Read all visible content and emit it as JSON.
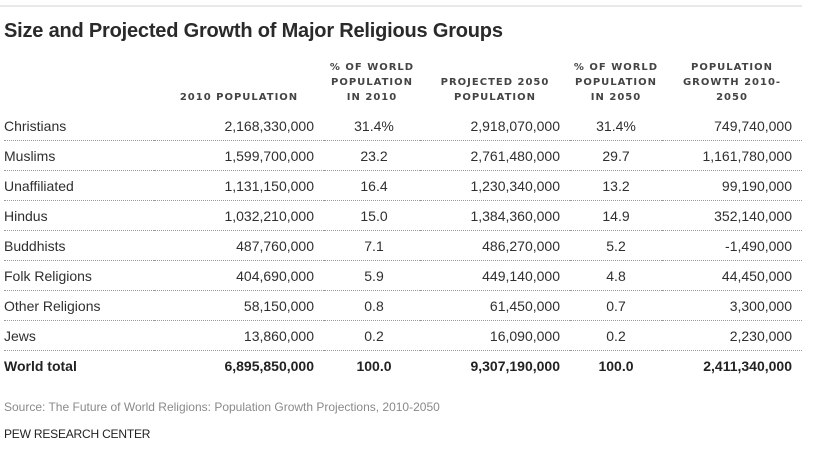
{
  "title": "Size and Projected Growth of Major Religious Groups",
  "headers": {
    "group": "",
    "pop_2010": "2010 POPULATION",
    "pct_2010_l1": "% OF WORLD",
    "pct_2010_l2": "POPULATION",
    "pct_2010_l3": "IN 2010",
    "pop_2050_l1": "PROJECTED 2050",
    "pop_2050_l2": "POPULATION",
    "pct_2050_l1": "% OF WORLD",
    "pct_2050_l2": "POPULATION",
    "pct_2050_l3": "IN 2050",
    "growth_l1": "POPULATION",
    "growth_l2": "GROWTH 2010-",
    "growth_l3": "2050"
  },
  "rows": [
    {
      "group": "Christians",
      "pop_2010": "2,168,330,000",
      "pct_2010": "31.4%",
      "pop_2050": "2,918,070,000",
      "pct_2050": "31.4%",
      "growth": "749,740,000"
    },
    {
      "group": "Muslims",
      "pop_2010": "1,599,700,000",
      "pct_2010": "23.2",
      "pop_2050": "2,761,480,000",
      "pct_2050": "29.7",
      "growth": "1,161,780,000"
    },
    {
      "group": "Unaffiliated",
      "pop_2010": "1,131,150,000",
      "pct_2010": "16.4",
      "pop_2050": "1,230,340,000",
      "pct_2050": "13.2",
      "growth": "99,190,000"
    },
    {
      "group": "Hindus",
      "pop_2010": "1,032,210,000",
      "pct_2010": "15.0",
      "pop_2050": "1,384,360,000",
      "pct_2050": "14.9",
      "growth": "352,140,000"
    },
    {
      "group": "Buddhists",
      "pop_2010": "487,760,000",
      "pct_2010": "7.1",
      "pop_2050": "486,270,000",
      "pct_2050": "5.2",
      "growth": "-1,490,000"
    },
    {
      "group": "Folk Religions",
      "pop_2010": "404,690,000",
      "pct_2010": "5.9",
      "pop_2050": "449,140,000",
      "pct_2050": "4.8",
      "growth": "44,450,000"
    },
    {
      "group": "Other Religions",
      "pop_2010": "58,150,000",
      "pct_2010": "0.8",
      "pop_2050": "61,450,000",
      "pct_2050": "0.7",
      "growth": "3,300,000"
    },
    {
      "group": "Jews",
      "pop_2010": "13,860,000",
      "pct_2010": "0.2",
      "pop_2050": "16,090,000",
      "pct_2050": "0.2",
      "growth": "2,230,000"
    }
  ],
  "total": {
    "group": "World total",
    "pop_2010": "6,895,850,000",
    "pct_2010": "100.0",
    "pop_2050": "9,307,190,000",
    "pct_2050": "100.0",
    "growth": "2,411,340,000"
  },
  "source": "Source: The Future of World Religions: Population Growth Projections, 2010-2050",
  "credit": "PEW RESEARCH CENTER"
}
